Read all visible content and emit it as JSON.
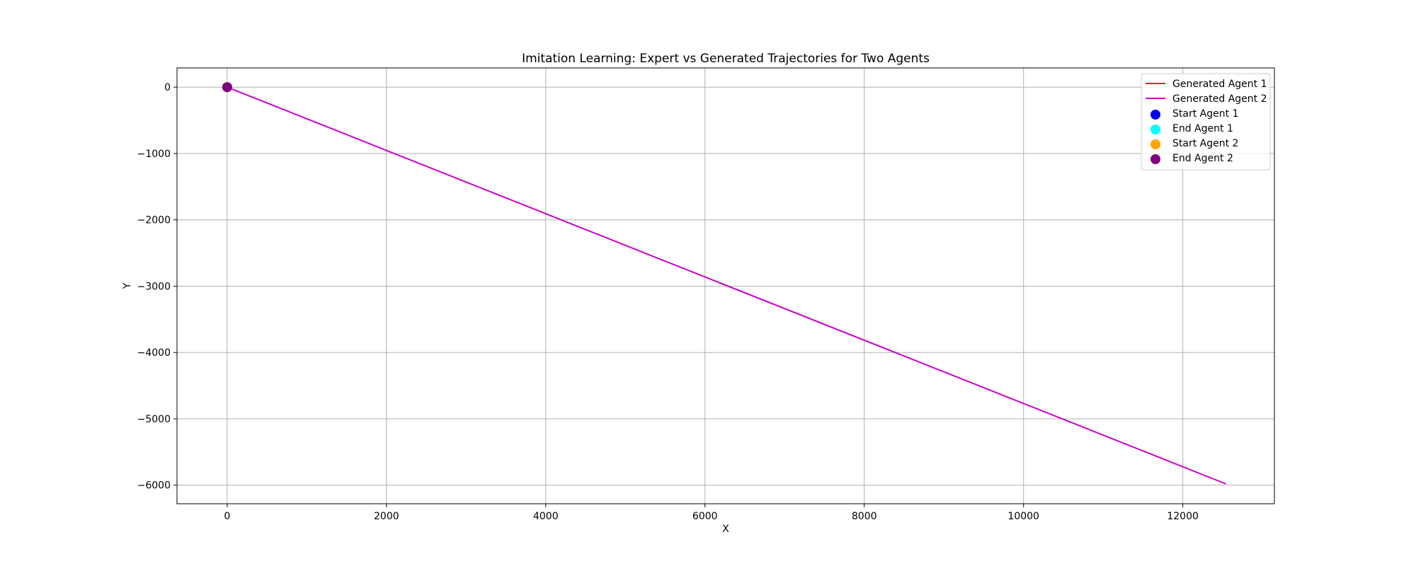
{
  "chart_data": {
    "type": "line",
    "title": "Imitation Learning: Expert vs Generated Trajectories for Two Agents",
    "xlabel": "X",
    "ylabel": "Y",
    "xlim": [
      -630,
      13150
    ],
    "ylim": [
      -6280,
      290
    ],
    "xticks": [
      0,
      2000,
      4000,
      6000,
      8000,
      10000,
      12000
    ],
    "xtick_labels": [
      "0",
      "2000",
      "4000",
      "6000",
      "8000",
      "10000",
      "12000"
    ],
    "yticks": [
      0,
      -1000,
      -2000,
      -3000,
      -4000,
      -5000,
      -6000
    ],
    "ytick_labels": [
      "0",
      "−1000",
      "−2000",
      "−3000",
      "−4000",
      "−5000",
      "−6000"
    ],
    "grid": true,
    "legend_position": "top-right",
    "series": [
      {
        "name": "Generated Agent 1",
        "kind": "line",
        "color": "#d62728",
        "x": [
          0,
          5
        ],
        "y": [
          0,
          -2
        ]
      },
      {
        "name": "Generated Agent 2",
        "kind": "line",
        "color": "#cc00cc",
        "x": [
          0,
          12540
        ],
        "y": [
          0,
          -5980
        ]
      }
    ],
    "markers": [
      {
        "name": "Start Agent 1",
        "color": "#0000ee",
        "x": 0,
        "y": 0
      },
      {
        "name": "End Agent 1",
        "color": "#00ffff",
        "x": 0,
        "y": 0
      },
      {
        "name": "Start Agent 2",
        "color": "#ffa500",
        "x": 0,
        "y": 0
      },
      {
        "name": "End Agent 2",
        "color": "#800080",
        "x": 0,
        "y": 0
      }
    ]
  }
}
